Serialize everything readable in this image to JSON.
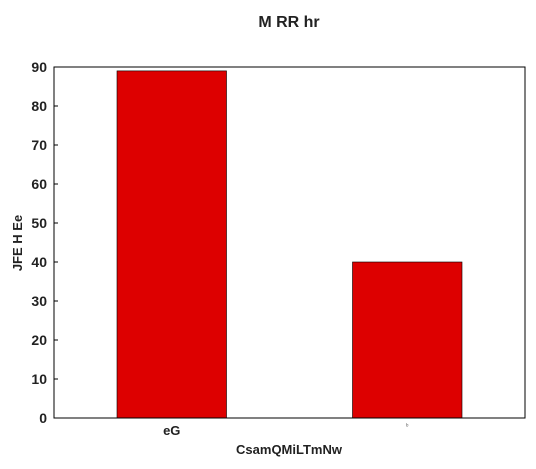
{
  "colors": {
    "bar": "#dd0000",
    "axis": "#000000",
    "text": "#222222"
  },
  "chart_data": {
    "type": "bar",
    "title": "M RR hr",
    "xlabel": "CsamQMiLTmNw",
    "ylabel": "JFE  H Ee",
    "categories": [
      "eG",
      "ᵇ"
    ],
    "values": [
      89,
      40
    ],
    "ylim": [
      0,
      90
    ],
    "yticks": [
      0,
      10,
      20,
      30,
      40,
      50,
      60,
      70,
      80,
      90
    ],
    "grid": false,
    "legend": "none"
  }
}
